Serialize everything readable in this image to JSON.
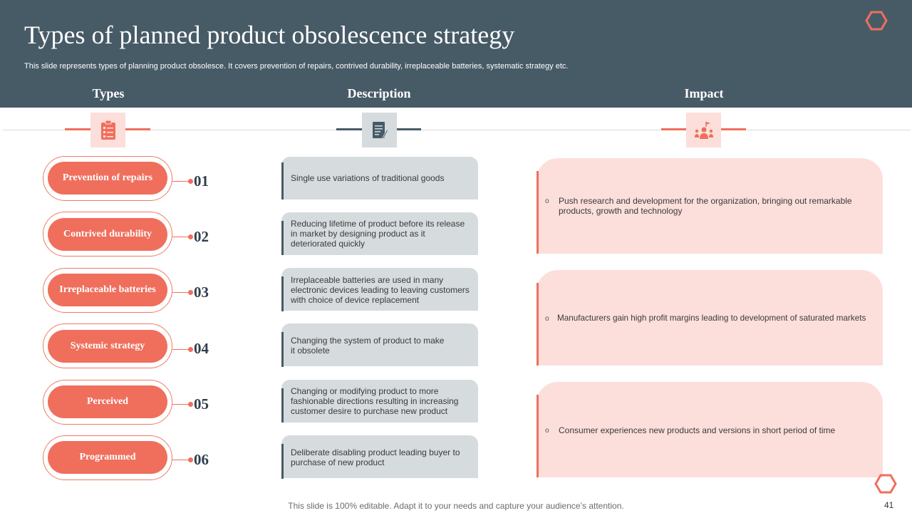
{
  "slide": {
    "title": "Types of planned product obsolescence strategy",
    "subtitle": "This slide represents types of planning product obsolesce. It covers prevention of repairs, contrived durability, irreplaceable batteries, systematic strategy etc.",
    "footer": "This slide is 100% editable. Adapt it to your needs and capture your audience’s attention.",
    "page_number": "41"
  },
  "columns": {
    "types": "Types",
    "description": "Description",
    "impact": "Impact"
  },
  "icons": {
    "types": "checklist-icon",
    "description": "document-pen-icon",
    "impact": "team-leader-icon",
    "decor": "hexagon-outline-icon"
  },
  "colors": {
    "header_band": "#475b67",
    "accent_coral": "#ef6f5c",
    "desc_fill": "#d6dbde",
    "impact_fill": "#fcdfdb"
  },
  "types": [
    {
      "label": "Prevention of repairs",
      "number": "01"
    },
    {
      "label": "Contrived durability",
      "number": "02"
    },
    {
      "label": "Irreplaceable batteries",
      "number": "03"
    },
    {
      "label": "Systemic strategy",
      "number": "04"
    },
    {
      "label": "Perceived",
      "number": "05"
    },
    {
      "label": "Programmed",
      "number": "06"
    }
  ],
  "descriptions": [
    "Single use variations of traditional goods",
    "Reducing lifetime of product before its release in market by designing product as it deteriorated quickly",
    "Irreplaceable batteries are used in many electronic devices leading to leaving customers with choice of device replacement",
    "Changing the system of product to make it obsolete",
    "Changing or modifying product to more fashionable directions resulting in increasing customer desire to purchase new product",
    "Deliberate disabling product leading buyer to purchase of new product"
  ],
  "impacts": [
    {
      "bullet": "o",
      "text": "Push research and development for the organization, bringing out remarkable products, growth and technology"
    },
    {
      "bullet": "o",
      "text": "Manufacturers gain high profit margins leading to development of saturated markets"
    },
    {
      "bullet": "o",
      "text": "Consumer experiences new products and versions in short period of time"
    }
  ]
}
